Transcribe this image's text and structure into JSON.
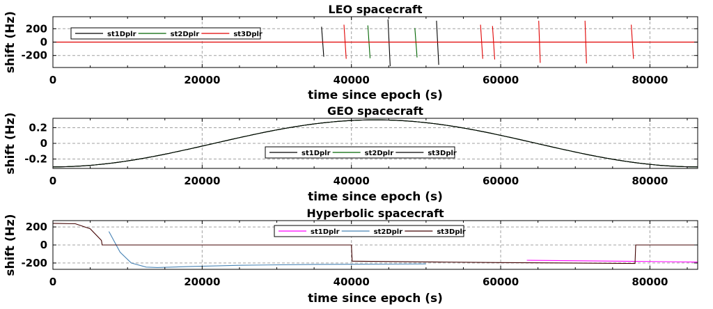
{
  "chart_data": [
    {
      "type": "line",
      "title": "LEO spacecraft",
      "xlabel": "time since epoch (s)",
      "ylabel": "shift (Hz)",
      "xlim": [
        0,
        86400
      ],
      "ylim": [
        -380,
        380
      ],
      "xticks": [
        0,
        20000,
        40000,
        60000,
        80000
      ],
      "xtick_labels": [
        "0",
        "20000",
        "40000",
        "60000",
        "80000"
      ],
      "yticks": [
        -200,
        0,
        200
      ],
      "ytick_labels": [
        "-200",
        "0",
        "200"
      ],
      "grid": true,
      "legend": "top-left, horizontal",
      "series": [
        {
          "name": "st1Dplr",
          "color": "#000000",
          "segments": [
            [
              [
                36000,
                230
              ],
              [
                36300,
                -220
              ]
            ],
            [
              [
                44900,
                340
              ],
              [
                45200,
                -360
              ]
            ],
            [
              [
                51400,
                320
              ],
              [
                51700,
                -340
              ]
            ]
          ]
        },
        {
          "name": "st2Dplr",
          "color": "#006400",
          "segments": [
            [
              [
                42200,
                250
              ],
              [
                42500,
                -240
              ]
            ],
            [
              [
                48500,
                210
              ],
              [
                48800,
                -230
              ]
            ]
          ]
        },
        {
          "name": "st3Dplr",
          "color": "#e00000",
          "baseline": 0,
          "segments": [
            [
              [
                39000,
                260
              ],
              [
                39300,
                -250
              ]
            ],
            [
              [
                57300,
                260
              ],
              [
                57600,
                -250
              ]
            ],
            [
              [
                58900,
                240
              ],
              [
                59200,
                -260
              ]
            ],
            [
              [
                65100,
                320
              ],
              [
                65300,
                -310
              ]
            ],
            [
              [
                71300,
                320
              ],
              [
                71500,
                -320
              ]
            ],
            [
              [
                77500,
                260
              ],
              [
                77800,
                -250
              ]
            ]
          ]
        }
      ]
    },
    {
      "type": "line",
      "title": "GEO spacecraft",
      "xlabel": "time since epoch (s)",
      "ylabel": "shift (Hz)",
      "xlim": [
        0,
        86400
      ],
      "ylim": [
        -0.32,
        0.32
      ],
      "xticks": [
        0,
        20000,
        40000,
        60000,
        80000
      ],
      "xtick_labels": [
        "0",
        "20000",
        "40000",
        "60000",
        "80000"
      ],
      "yticks": [
        -0.2,
        0,
        0.2
      ],
      "ytick_labels": [
        "-0.2",
        "0",
        "0.2"
      ],
      "grid": true,
      "legend": "lower-center, horizontal",
      "series": [
        {
          "name": "st1Dplr",
          "color": "#000000",
          "amplitude": 0.3,
          "period": 86400,
          "peak_at": 43200
        },
        {
          "name": "st2Dplr",
          "color": "#006400",
          "amplitude": 0.3,
          "period": 86400,
          "peak_at": 43200
        },
        {
          "name": "st3Dplr",
          "color": "#000000",
          "amplitude": 0.3,
          "period": 86400,
          "peak_at": 43200
        }
      ]
    },
    {
      "type": "line",
      "title": "Hyperbolic spacecraft",
      "xlabel": "time since epoch (s)",
      "ylabel": "shift (Hz)",
      "xlim": [
        0,
        86400
      ],
      "ylim": [
        -270,
        270
      ],
      "xticks": [
        0,
        20000,
        40000,
        60000,
        80000
      ],
      "xtick_labels": [
        "0",
        "20000",
        "40000",
        "60000",
        "80000"
      ],
      "yticks": [
        -200,
        0,
        200
      ],
      "ytick_labels": [
        "-200",
        "0",
        "200"
      ],
      "grid": true,
      "legend": "top-center, horizontal",
      "series": [
        {
          "name": "st1Dplr",
          "color": "#ff00ff",
          "points": [
            [
              63500,
              -170
            ],
            [
              70000,
              -175
            ],
            [
              76000,
              -180
            ],
            [
              82000,
              -185
            ],
            [
              86400,
              -190
            ]
          ]
        },
        {
          "name": "st2Dplr",
          "color": "#4682b4",
          "points": [
            [
              7500,
              150
            ],
            [
              9000,
              -80
            ],
            [
              10500,
              -200
            ],
            [
              12500,
              -245
            ],
            [
              14000,
              -250
            ],
            [
              18000,
              -240
            ],
            [
              25000,
              -225
            ],
            [
              35000,
              -215
            ],
            [
              45000,
              -212
            ],
            [
              50000,
              -210
            ]
          ]
        },
        {
          "name": "st3Dplr",
          "color": "#400000",
          "points": [
            [
              0,
              240
            ],
            [
              3000,
              235
            ],
            [
              5000,
              180
            ],
            [
              6500,
              50
            ],
            [
              6600,
              0
            ],
            [
              40000,
              0
            ],
            [
              40100,
              -180
            ],
            [
              60000,
              -195
            ],
            [
              78000,
              -205
            ],
            [
              78100,
              0
            ],
            [
              86400,
              0
            ]
          ]
        }
      ]
    }
  ]
}
